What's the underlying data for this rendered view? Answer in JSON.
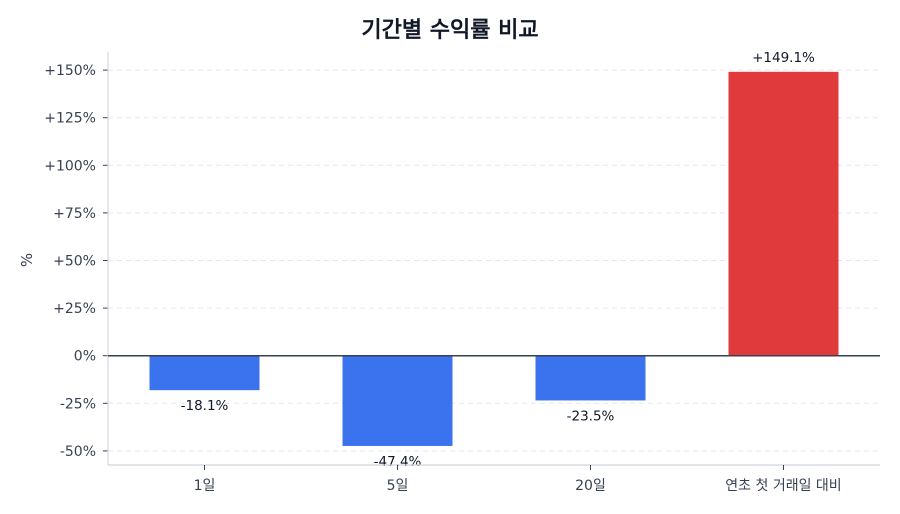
{
  "title": "기간별 수익률 비교",
  "chart_data": {
    "type": "bar",
    "title": "기간별 수익률 비교",
    "xlabel": "",
    "ylabel": "%",
    "categories": [
      "1일",
      "5일",
      "20일",
      "연초 첫 거래일 대비"
    ],
    "values": [
      -18.1,
      -47.4,
      -23.5,
      149.1
    ],
    "value_labels": [
      "-18.1%",
      "-47.4%",
      "-23.5%",
      "+149.1%"
    ],
    "bar_colors": [
      "#3b73ee",
      "#3b73ee",
      "#3b73ee",
      "#e03a3c"
    ],
    "ylim": [
      -57.4,
      159.5
    ],
    "yticks": [
      -50,
      -25,
      0,
      25,
      50,
      75,
      100,
      125,
      150
    ],
    "ytick_labels": [
      "-50%",
      "-25%",
      "0%",
      "+25%",
      "+50%",
      "+75%",
      "+100%",
      "+125%",
      "+150%"
    ],
    "grid": true,
    "zero_line": true,
    "legend": null
  },
  "colors": {
    "positive": "#e03a3c",
    "negative": "#3b73ee",
    "axis": "#d1d5db",
    "zero_line": "#374151",
    "grid": "#e5e7eb",
    "text": "#374151"
  }
}
